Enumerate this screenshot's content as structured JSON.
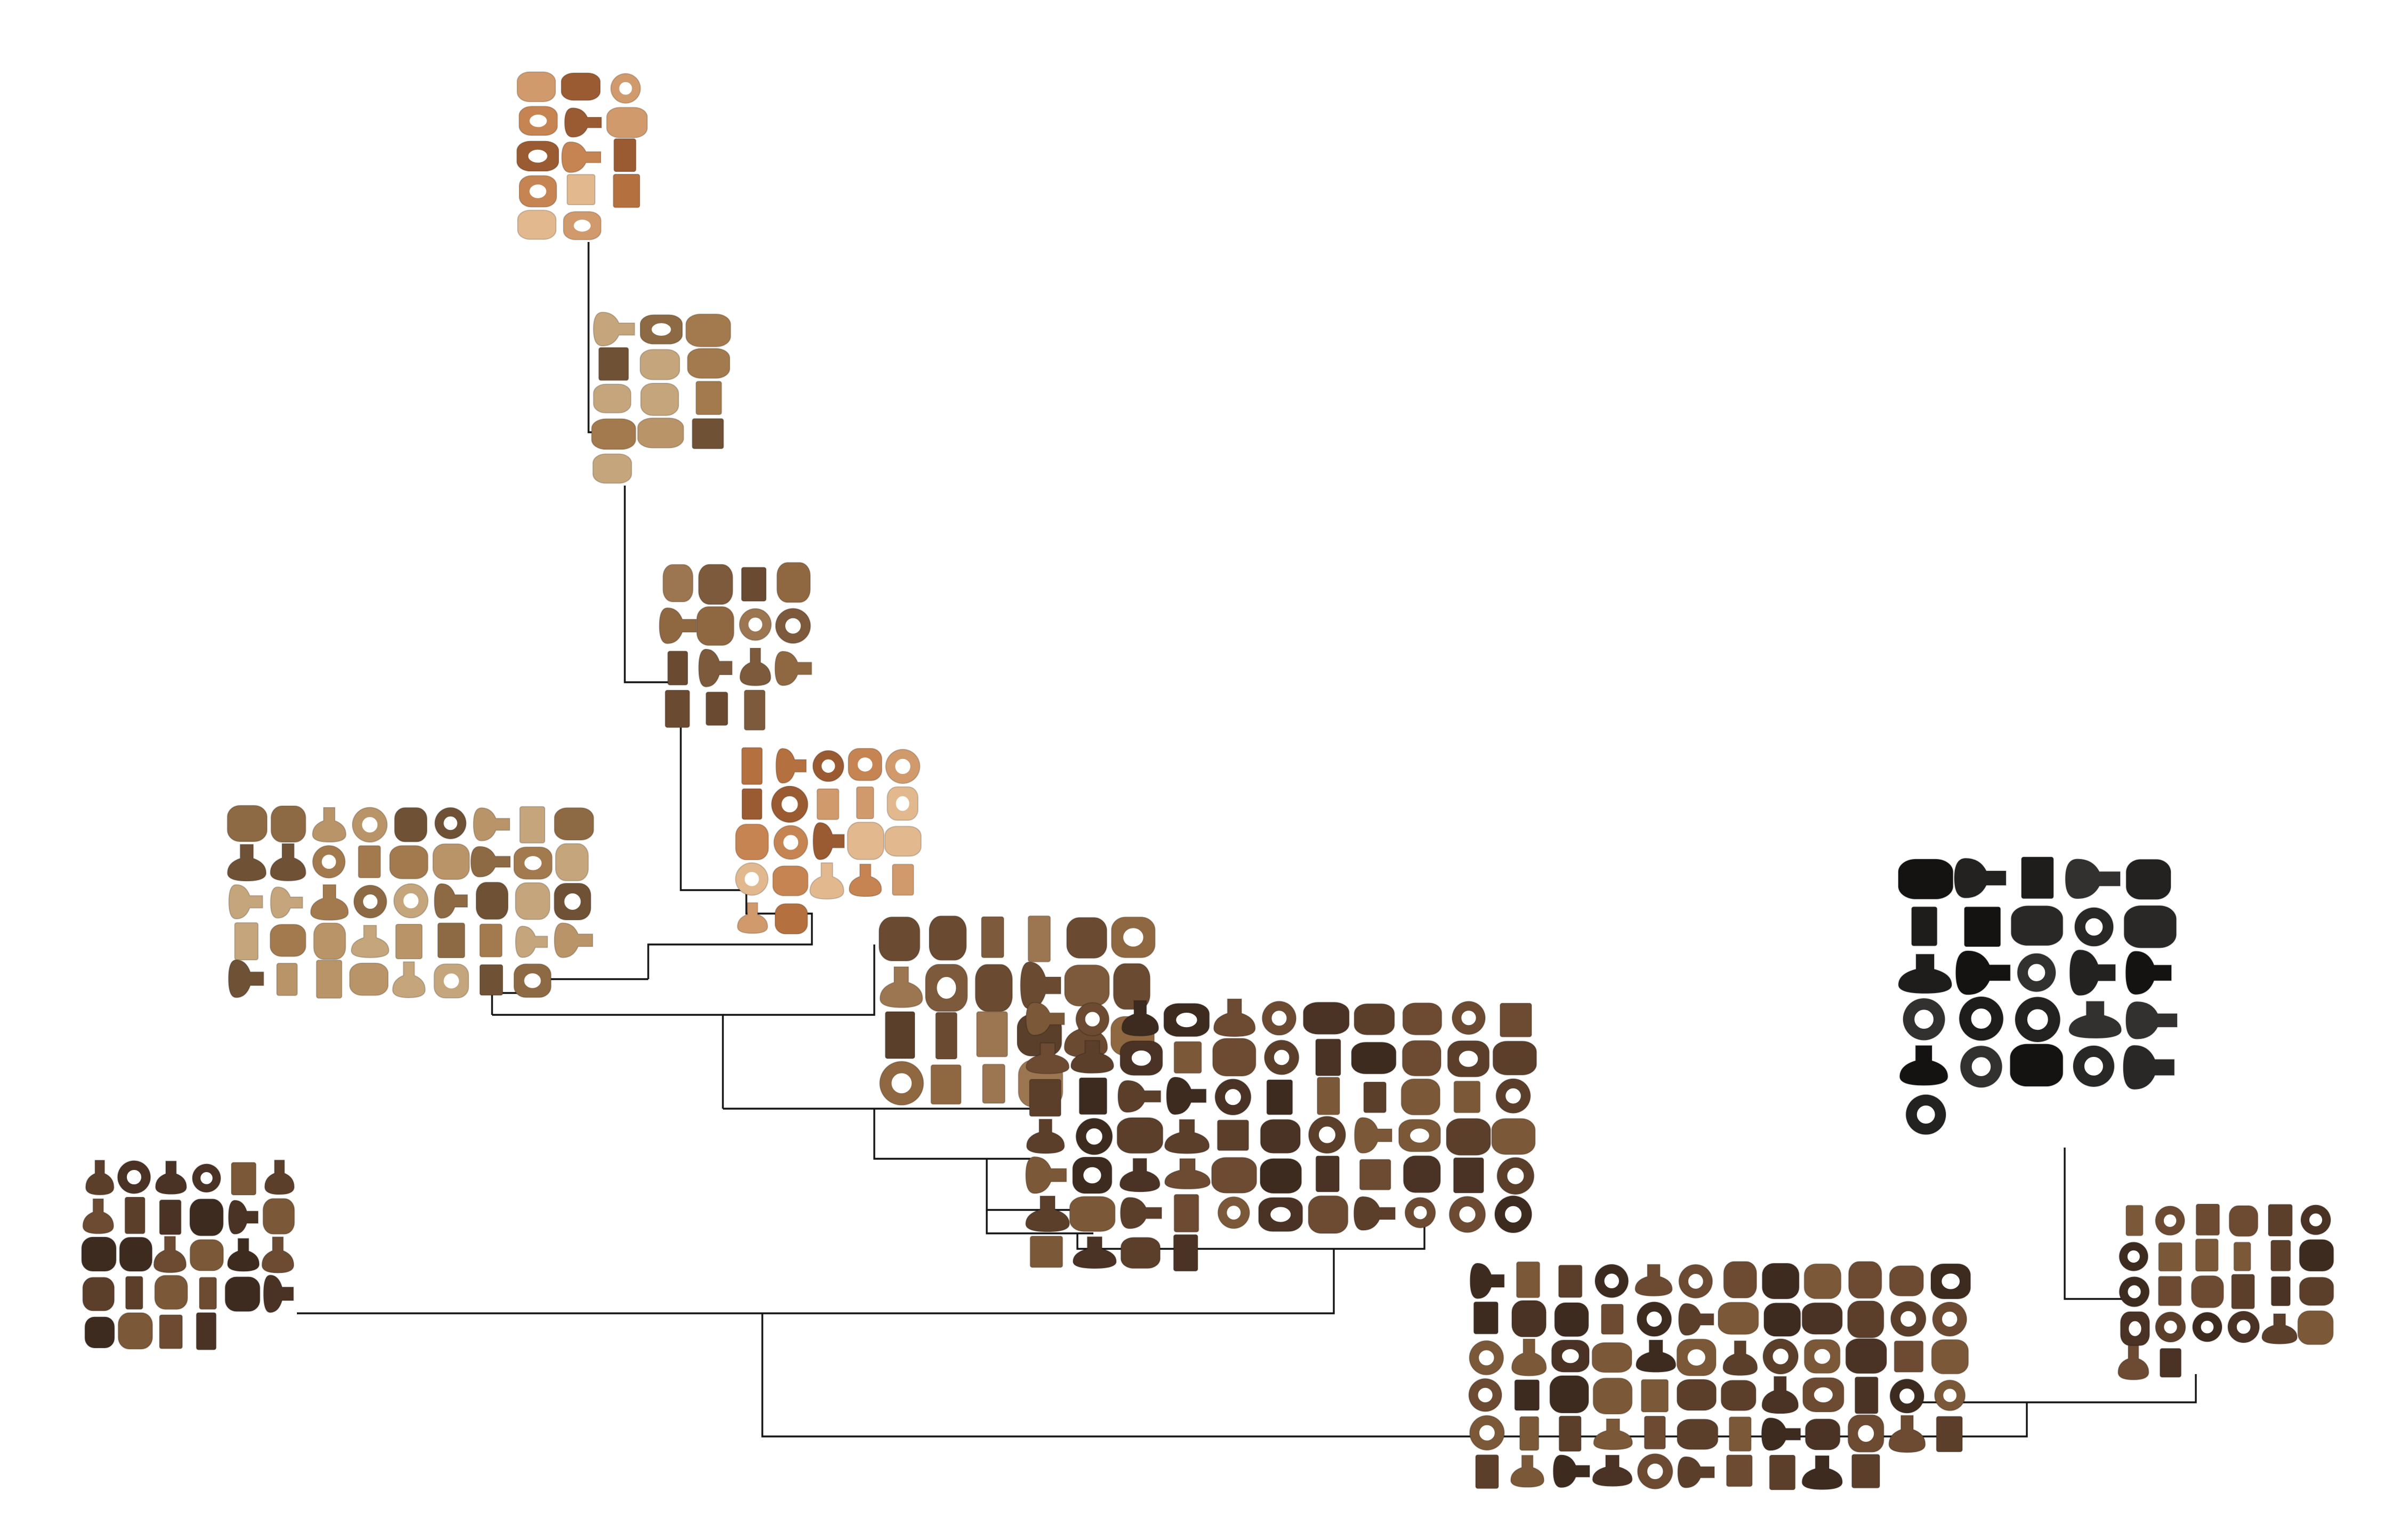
{
  "diagram": {
    "type": "dendrogram",
    "palette": {
      "background": "#ffffff",
      "link": "#141414",
      "tones_light": [
        "#c58452",
        "#b4703f",
        "#d19a6c",
        "#9a5a32",
        "#e2b98f"
      ],
      "tones_tan": [
        "#a37a4e",
        "#8d6a43",
        "#b89468",
        "#6f5236",
        "#c4a57c"
      ],
      "tones_mid": [
        "#7d5a3b",
        "#6a4a31",
        "#8f6842",
        "#5a3f2a",
        "#9c7650"
      ],
      "tones_dark": [
        "#5b3f2b",
        "#4a3324",
        "#6c4b32",
        "#3d2b1f",
        "#7b5838"
      ],
      "tones_black": [
        "#1f1d1c",
        "#2a2827",
        "#141312",
        "#333130",
        "#242221"
      ]
    },
    "clusters": [
      {
        "id": "c1",
        "tone": "light",
        "count": 14
      },
      {
        "id": "c2",
        "tone": "tan",
        "count": 13
      },
      {
        "id": "c3",
        "tone": "mid",
        "count": 15
      },
      {
        "id": "c4",
        "tone": "light",
        "count": 22
      },
      {
        "id": "c5",
        "tone": "tan",
        "count": 44
      },
      {
        "id": "c6",
        "tone": "mid",
        "count": 22
      },
      {
        "id": "c7",
        "tone": "dark",
        "count": 70
      },
      {
        "id": "c8",
        "tone": "dark",
        "count": 28
      },
      {
        "id": "c9",
        "tone": "dark",
        "count": 70
      },
      {
        "id": "c10",
        "tone": "black",
        "count": 26
      },
      {
        "id": "c11",
        "tone": "dark",
        "count": 26
      }
    ]
  }
}
